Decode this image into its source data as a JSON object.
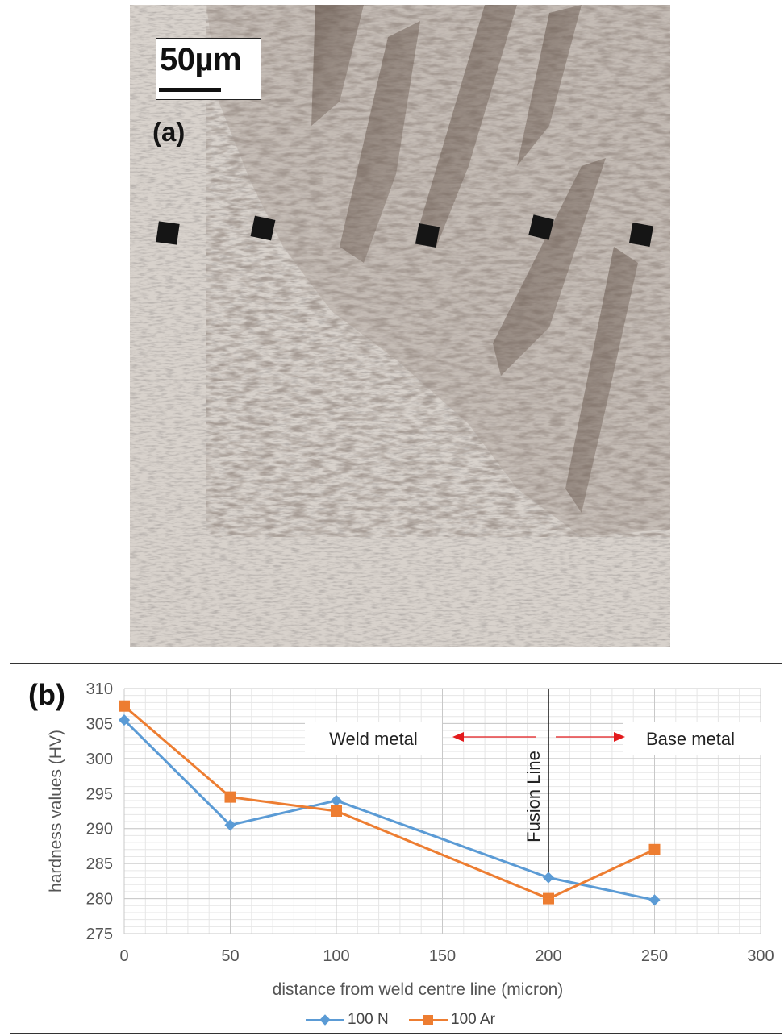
{
  "panel_a": {
    "label": "(a)",
    "scale_bar": "50µm"
  },
  "panel_b": {
    "label": "(b)"
  },
  "chart_data": {
    "type": "line",
    "xlabel": "distance from weld centre line (micron)",
    "ylabel": "hardness values (HV)",
    "xlim": [
      0,
      300
    ],
    "ylim": [
      275,
      310
    ],
    "xticks": [
      0,
      50,
      100,
      150,
      200,
      250,
      300
    ],
    "yticks": [
      275,
      280,
      285,
      290,
      295,
      300,
      305,
      310
    ],
    "grid": true,
    "legend_position": "bottom",
    "series": [
      {
        "name": "100 N",
        "color": "#5b9bd5",
        "marker": "diamond",
        "x": [
          0,
          50,
          100,
          200,
          250
        ],
        "y": [
          305.5,
          290.5,
          294,
          283,
          279.8
        ]
      },
      {
        "name": "100 Ar",
        "color": "#ed7d31",
        "marker": "square",
        "x": [
          0,
          50,
          100,
          200,
          250
        ],
        "y": [
          307.5,
          294.5,
          292.5,
          280,
          287
        ]
      }
    ],
    "annotations": {
      "fusion_line": {
        "label": "Fusion Line",
        "x": 200
      },
      "left_region": "Weld metal",
      "right_region": "Base metal",
      "arrow_color": "#e31a1c"
    }
  }
}
